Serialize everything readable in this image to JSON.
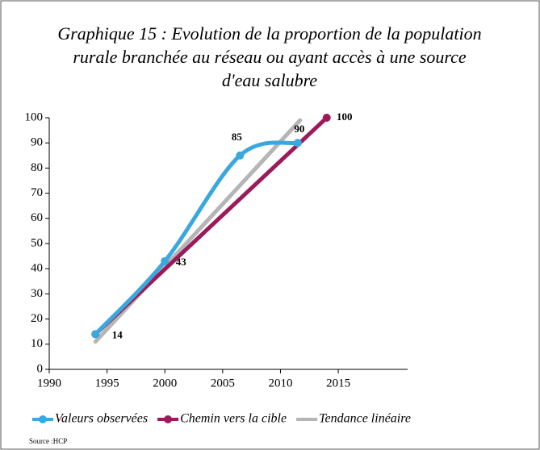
{
  "chart_data": {
    "type": "line",
    "title": [
      "Graphique 15 : Evolution de la proportion de la population",
      "rurale branchée au réseau ou ayant accès à une source",
      "d'eau salubre"
    ],
    "series": [
      {
        "name": "Valeurs observées",
        "color": "#3aa8dc",
        "x": [
          1994,
          2000,
          2006.5,
          2011.5
        ],
        "values": [
          14,
          43,
          85,
          90
        ],
        "smooth": true
      },
      {
        "name": "Chemin vers la cible",
        "color": "#9b1b5a",
        "x": [
          1994,
          2014
        ],
        "values": [
          14,
          100
        ]
      },
      {
        "name": "Tendance linéaire",
        "color": "#b5b5b5",
        "x": [
          1994,
          2011.7
        ],
        "values": [
          11,
          99
        ]
      }
    ],
    "xlim": [
      1990,
      2021
    ],
    "xticks": [
      1990,
      1995,
      2000,
      2005,
      2010,
      2015
    ],
    "ylim": [
      0,
      100
    ],
    "yticks": [
      0,
      10,
      20,
      30,
      40,
      50,
      60,
      70,
      80,
      90,
      100
    ],
    "grid": false,
    "legend": "bottom",
    "source": "Source :HCP"
  }
}
